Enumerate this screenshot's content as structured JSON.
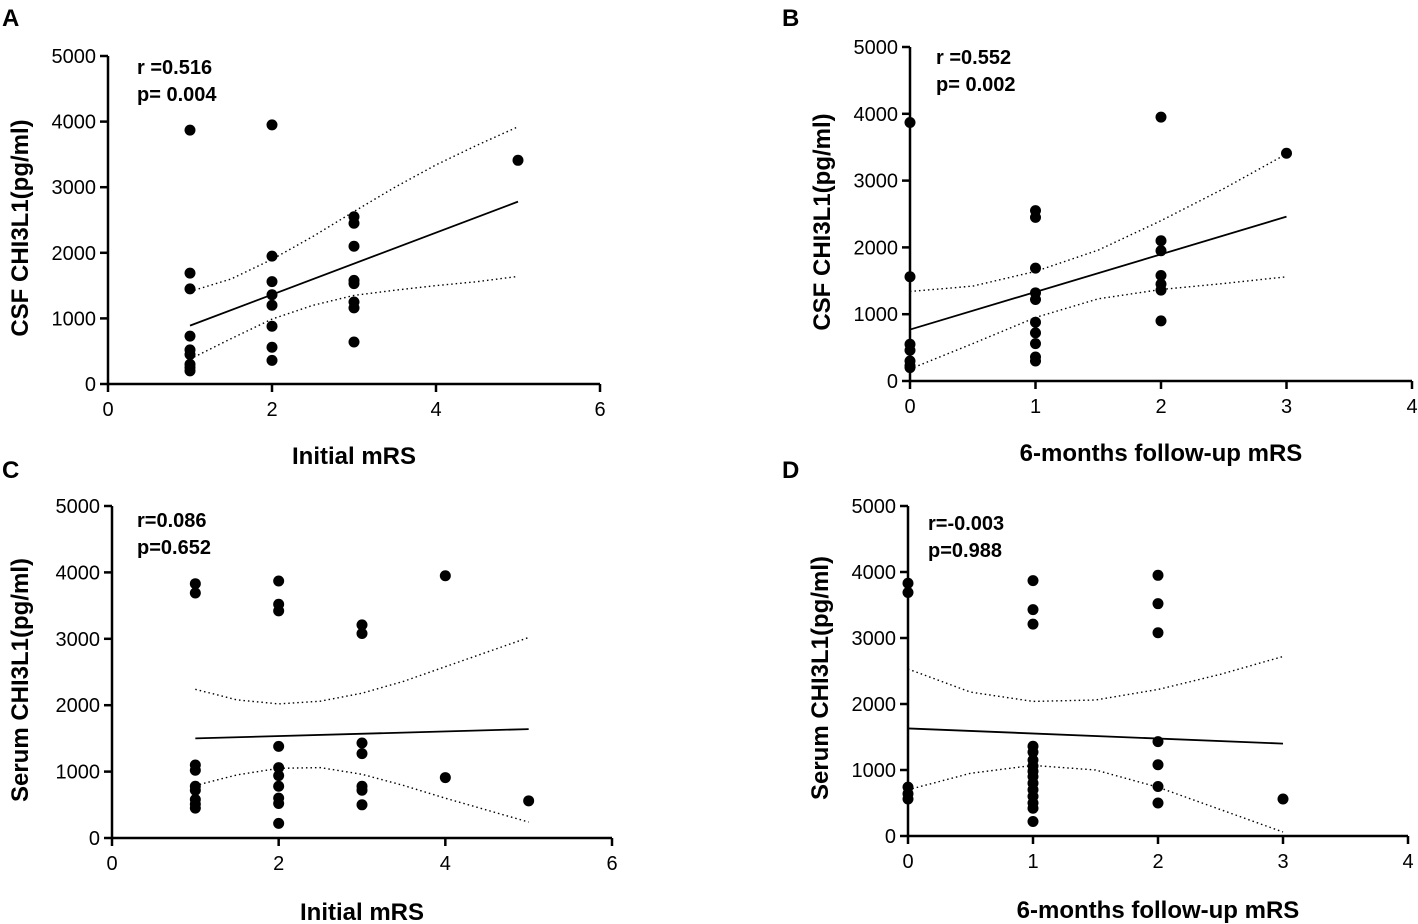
{
  "colors": {
    "ink": "#000000",
    "background": "#ffffff"
  },
  "chart_data": [
    {
      "type": "scatter",
      "panel": "A",
      "xlabel": "Initial mRS",
      "ylabel": "CSF CHI3L1(pg/ml)",
      "xlim": [
        0,
        6
      ],
      "ylim": [
        0,
        5000
      ],
      "xticks": [
        "0",
        "2",
        "4",
        "6"
      ],
      "yticks": [
        "0",
        "1000",
        "2000",
        "3000",
        "4000",
        "5000"
      ],
      "annotation": [
        "r =0.516",
        "p= 0.004"
      ],
      "points": [
        {
          "x": 1,
          "y": 3870
        },
        {
          "x": 1,
          "y": 1690
        },
        {
          "x": 1,
          "y": 1450
        },
        {
          "x": 1,
          "y": 730
        },
        {
          "x": 1,
          "y": 520
        },
        {
          "x": 1,
          "y": 450
        },
        {
          "x": 1,
          "y": 300
        },
        {
          "x": 1,
          "y": 250
        },
        {
          "x": 1,
          "y": 200
        },
        {
          "x": 2,
          "y": 3950
        },
        {
          "x": 2,
          "y": 1950
        },
        {
          "x": 2,
          "y": 1560
        },
        {
          "x": 2,
          "y": 1360
        },
        {
          "x": 2,
          "y": 1200
        },
        {
          "x": 2,
          "y": 880
        },
        {
          "x": 2,
          "y": 560
        },
        {
          "x": 2,
          "y": 360
        },
        {
          "x": 3,
          "y": 2550
        },
        {
          "x": 3,
          "y": 2450
        },
        {
          "x": 3,
          "y": 2100
        },
        {
          "x": 3,
          "y": 1580
        },
        {
          "x": 3,
          "y": 1530
        },
        {
          "x": 3,
          "y": 1250
        },
        {
          "x": 3,
          "y": 1160
        },
        {
          "x": 3,
          "y": 640
        },
        {
          "x": 5,
          "y": 3410
        }
      ],
      "fit": {
        "x": [
          1,
          5
        ],
        "y": [
          890,
          2780
        ]
      },
      "ci_upper": {
        "x": [
          1,
          1.5,
          2,
          2.5,
          3,
          3.5,
          4,
          4.5,
          5
        ],
        "y": [
          1410,
          1600,
          1900,
          2250,
          2630,
          3000,
          3340,
          3640,
          3920
        ]
      },
      "ci_lower": {
        "x": [
          1,
          1.5,
          2,
          2.5,
          3,
          3.5,
          4,
          4.5,
          5
        ],
        "y": [
          380,
          690,
          990,
          1200,
          1350,
          1430,
          1500,
          1560,
          1640
        ]
      }
    },
    {
      "type": "scatter",
      "panel": "B",
      "xlabel": "6-months follow-up mRS",
      "ylabel": "CSF CHI3L1(pg/ml)",
      "xlim": [
        0,
        4
      ],
      "ylim": [
        0,
        5000
      ],
      "xticks": [
        "0",
        "1",
        "2",
        "3",
        "4"
      ],
      "yticks": [
        "0",
        "1000",
        "2000",
        "3000",
        "4000",
        "5000"
      ],
      "annotation": [
        "r =0.552",
        "p= 0.002"
      ],
      "points": [
        {
          "x": 0,
          "y": 3870
        },
        {
          "x": 0,
          "y": 1560
        },
        {
          "x": 0,
          "y": 550
        },
        {
          "x": 0,
          "y": 460
        },
        {
          "x": 0,
          "y": 300
        },
        {
          "x": 0,
          "y": 230
        },
        {
          "x": 0,
          "y": 200
        },
        {
          "x": 1,
          "y": 2550
        },
        {
          "x": 1,
          "y": 2450
        },
        {
          "x": 1,
          "y": 1690
        },
        {
          "x": 1,
          "y": 1320
        },
        {
          "x": 1,
          "y": 1220
        },
        {
          "x": 1,
          "y": 880
        },
        {
          "x": 1,
          "y": 720
        },
        {
          "x": 1,
          "y": 560
        },
        {
          "x": 1,
          "y": 360
        },
        {
          "x": 1,
          "y": 300
        },
        {
          "x": 2,
          "y": 3950
        },
        {
          "x": 2,
          "y": 2100
        },
        {
          "x": 2,
          "y": 1950
        },
        {
          "x": 2,
          "y": 1580
        },
        {
          "x": 2,
          "y": 1450
        },
        {
          "x": 2,
          "y": 1360
        },
        {
          "x": 2,
          "y": 900
        },
        {
          "x": 3,
          "y": 3410
        }
      ],
      "fit": {
        "x": [
          0,
          3
        ],
        "y": [
          770,
          2460
        ]
      },
      "ci_upper": {
        "x": [
          0,
          0.5,
          1,
          1.5,
          2,
          2.5,
          3
        ],
        "y": [
          1340,
          1420,
          1640,
          1960,
          2400,
          2880,
          3400
        ]
      },
      "ci_lower": {
        "x": [
          0,
          0.5,
          1,
          1.5,
          2,
          2.5,
          3
        ],
        "y": [
          180,
          560,
          950,
          1230,
          1370,
          1460,
          1560
        ]
      }
    },
    {
      "type": "scatter",
      "panel": "C",
      "xlabel": "Initial mRS",
      "ylabel": "Serum CHI3L1(pg/ml)",
      "xlim": [
        0,
        6
      ],
      "ylim": [
        0,
        5000
      ],
      "xticks": [
        "0",
        "2",
        "4",
        "6"
      ],
      "yticks": [
        "0",
        "1000",
        "2000",
        "3000",
        "4000",
        "5000"
      ],
      "annotation": [
        "r=0.086",
        "p=0.652"
      ],
      "points": [
        {
          "x": 1,
          "y": 3830
        },
        {
          "x": 1,
          "y": 3690
        },
        {
          "x": 1,
          "y": 1100
        },
        {
          "x": 1,
          "y": 1020
        },
        {
          "x": 1,
          "y": 780
        },
        {
          "x": 1,
          "y": 720
        },
        {
          "x": 1,
          "y": 580
        },
        {
          "x": 1,
          "y": 510
        },
        {
          "x": 1,
          "y": 450
        },
        {
          "x": 2,
          "y": 3870
        },
        {
          "x": 2,
          "y": 3520
        },
        {
          "x": 2,
          "y": 3420
        },
        {
          "x": 2,
          "y": 1380
        },
        {
          "x": 2,
          "y": 1060
        },
        {
          "x": 2,
          "y": 940
        },
        {
          "x": 2,
          "y": 780
        },
        {
          "x": 2,
          "y": 600
        },
        {
          "x": 2,
          "y": 520
        },
        {
          "x": 2,
          "y": 220
        },
        {
          "x": 3,
          "y": 3210
        },
        {
          "x": 3,
          "y": 3080
        },
        {
          "x": 3,
          "y": 1430
        },
        {
          "x": 3,
          "y": 1270
        },
        {
          "x": 3,
          "y": 780
        },
        {
          "x": 3,
          "y": 720
        },
        {
          "x": 3,
          "y": 500
        },
        {
          "x": 4,
          "y": 3950
        },
        {
          "x": 4,
          "y": 910
        },
        {
          "x": 5,
          "y": 560
        }
      ],
      "fit": {
        "x": [
          1,
          5
        ],
        "y": [
          1500,
          1640
        ]
      },
      "ci_upper": {
        "x": [
          1,
          1.5,
          2,
          2.5,
          3,
          3.5,
          4,
          4.5,
          5
        ],
        "y": [
          2240,
          2080,
          2020,
          2060,
          2180,
          2360,
          2580,
          2800,
          3020
        ]
      },
      "ci_lower": {
        "x": [
          1,
          1.5,
          2,
          2.5,
          3,
          3.5,
          4,
          4.5,
          5
        ],
        "y": [
          790,
          950,
          1050,
          1060,
          960,
          790,
          600,
          420,
          240
        ]
      }
    },
    {
      "type": "scatter",
      "panel": "D",
      "xlabel": "6-months follow-up mRS",
      "ylabel": "Serum CHI3L1(pg/ml)",
      "xlim": [
        0,
        4
      ],
      "ylim": [
        0,
        5000
      ],
      "xticks": [
        "0",
        "1",
        "2",
        "3",
        "4"
      ],
      "yticks": [
        "0",
        "1000",
        "2000",
        "3000",
        "4000",
        "5000"
      ],
      "annotation": [
        "r=-0.003",
        "p=0.988"
      ],
      "points": [
        {
          "x": 0,
          "y": 3830
        },
        {
          "x": 0,
          "y": 3690
        },
        {
          "x": 0,
          "y": 740
        },
        {
          "x": 0,
          "y": 640
        },
        {
          "x": 0,
          "y": 560
        },
        {
          "x": 1,
          "y": 3870
        },
        {
          "x": 1,
          "y": 3430
        },
        {
          "x": 1,
          "y": 3210
        },
        {
          "x": 1,
          "y": 1360
        },
        {
          "x": 1,
          "y": 1270
        },
        {
          "x": 1,
          "y": 1150
        },
        {
          "x": 1,
          "y": 1060
        },
        {
          "x": 1,
          "y": 980
        },
        {
          "x": 1,
          "y": 900
        },
        {
          "x": 1,
          "y": 800
        },
        {
          "x": 1,
          "y": 700
        },
        {
          "x": 1,
          "y": 600
        },
        {
          "x": 1,
          "y": 500
        },
        {
          "x": 1,
          "y": 420
        },
        {
          "x": 1,
          "y": 220
        },
        {
          "x": 2,
          "y": 3950
        },
        {
          "x": 2,
          "y": 3520
        },
        {
          "x": 2,
          "y": 3080
        },
        {
          "x": 2,
          "y": 1430
        },
        {
          "x": 2,
          "y": 1080
        },
        {
          "x": 2,
          "y": 750
        },
        {
          "x": 2,
          "y": 500
        },
        {
          "x": 3,
          "y": 560
        }
      ],
      "fit": {
        "x": [
          0,
          3
        ],
        "y": [
          1630,
          1400
        ]
      },
      "ci_upper": {
        "x": [
          0,
          0.5,
          1,
          1.5,
          2,
          2.5,
          3
        ],
        "y": [
          2530,
          2180,
          2040,
          2060,
          2220,
          2450,
          2720
        ]
      },
      "ci_lower": {
        "x": [
          0,
          0.5,
          1,
          1.5,
          2,
          2.5,
          3
        ],
        "y": [
          700,
          950,
          1070,
          1000,
          740,
          400,
          60
        ]
      }
    }
  ]
}
